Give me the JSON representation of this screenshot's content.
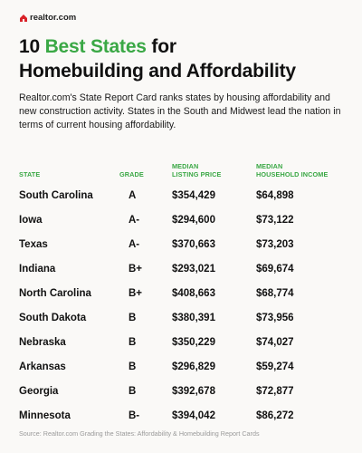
{
  "brand": {
    "logo_text": "realtor.com"
  },
  "title": {
    "line1_prefix": "10 ",
    "line1_accent": "Best States",
    "line1_suffix": " for",
    "line2": "Homebuilding and Affordability"
  },
  "description": "Realtor.com's State Report Card ranks states by housing affordability and new construction activity. States in the South and Midwest lead the nation in terms of current housing affordability.",
  "table": {
    "headers": {
      "state": "STATE",
      "grade": "GRADE",
      "price_line1": "MEDIAN",
      "price_line2": "LISTING PRICE",
      "income_line1": "MEDIAN",
      "income_line2": "HOUSEHOLD INCOME"
    },
    "rows": [
      {
        "state": "South Carolina",
        "grade": "A",
        "price": "$354,429",
        "income": "$64,898"
      },
      {
        "state": "Iowa",
        "grade": "A-",
        "price": "$294,600",
        "income": "$73,122"
      },
      {
        "state": "Texas",
        "grade": "A-",
        "price": "$370,663",
        "income": "$73,203"
      },
      {
        "state": "Indiana",
        "grade": "B+",
        "price": "$293,021",
        "income": "$69,674"
      },
      {
        "state": "North Carolina",
        "grade": "B+",
        "price": "$408,663",
        "income": "$68,774"
      },
      {
        "state": "South Dakota",
        "grade": "B",
        "price": "$380,391",
        "income": "$73,956"
      },
      {
        "state": "Nebraska",
        "grade": "B",
        "price": "$350,229",
        "income": "$74,027"
      },
      {
        "state": "Arkansas",
        "grade": "B",
        "price": "$296,829",
        "income": "$59,274"
      },
      {
        "state": "Georgia",
        "grade": "B",
        "price": "$392,678",
        "income": "$72,877"
      },
      {
        "state": "Minnesota",
        "grade": "B-",
        "price": "$394,042",
        "income": "$86,272"
      }
    ]
  },
  "source": "Source: Realtor.com Grading the States: Affordability & Homebuilding Report Cards",
  "colors": {
    "accent": "#3aa845",
    "logo_house": "#d92228",
    "background": "#faf9f7"
  }
}
